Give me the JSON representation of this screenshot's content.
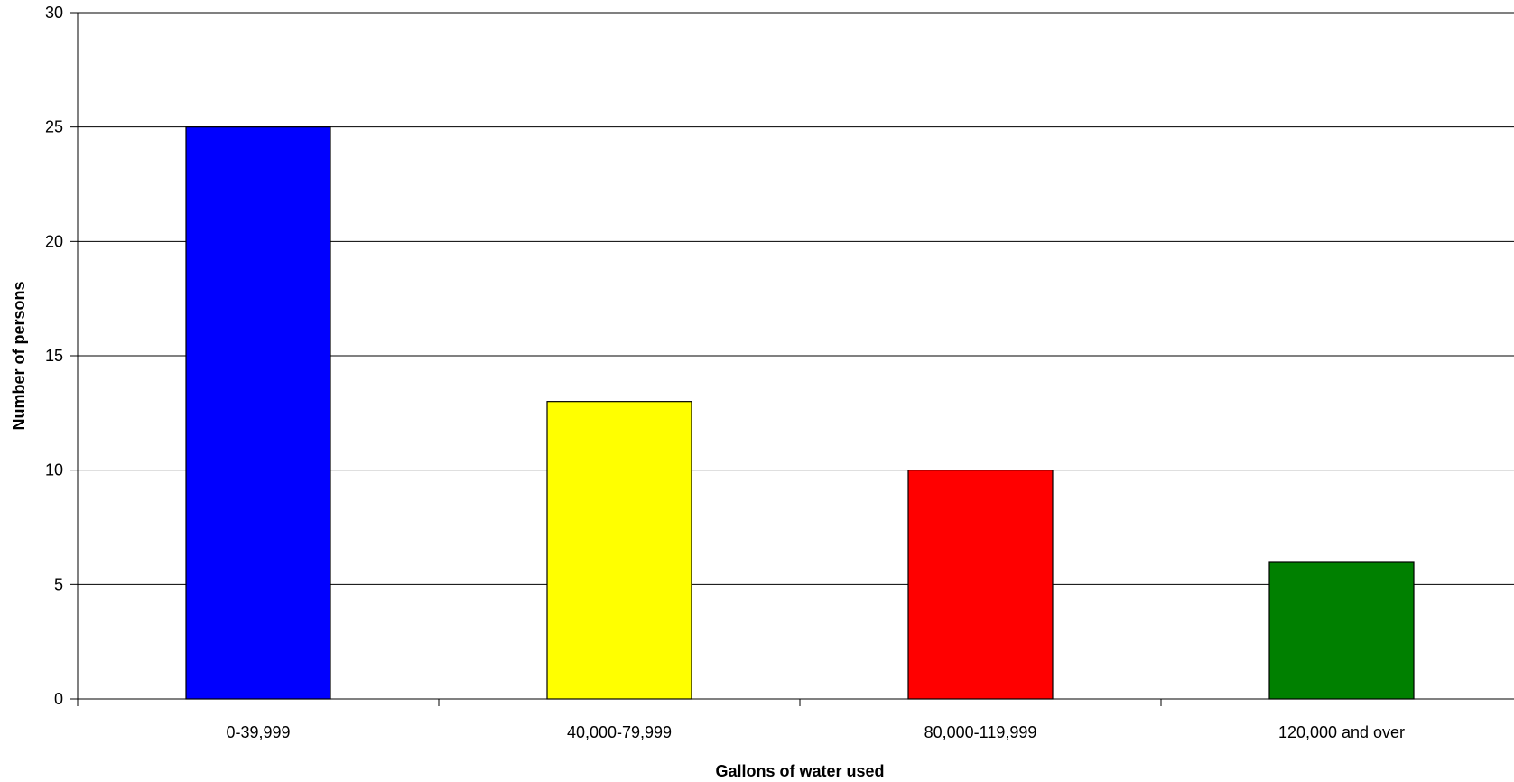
{
  "chart_data": {
    "type": "bar",
    "title": "",
    "xlabel": "Gallons of water used",
    "ylabel": "Number of persons",
    "categories": [
      "0-39,999",
      "40,000-79,999",
      "80,000-119,999",
      "120,000 and over"
    ],
    "values": [
      25,
      13,
      10,
      6
    ],
    "bar_colors": [
      "#0000FF",
      "#FFFF00",
      "#FF0000",
      "#008000"
    ],
    "ylim": [
      0,
      30
    ],
    "yticks": [
      0,
      5,
      10,
      15,
      20,
      25,
      30
    ],
    "grid": true,
    "legend": "none"
  }
}
